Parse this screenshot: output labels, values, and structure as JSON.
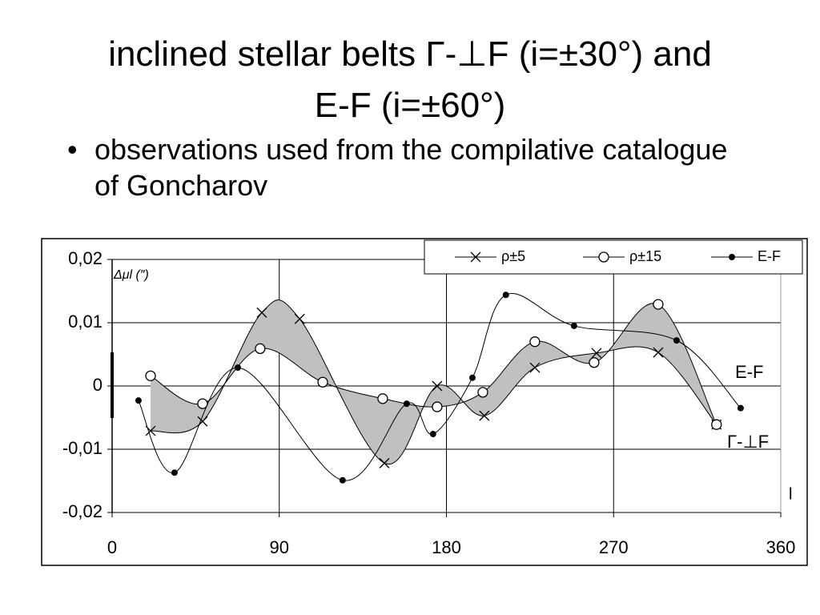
{
  "slide": {
    "title_lines": [
      "inclined stellar belts Γ-⊥F (i=±30°) and",
      "E-F (i=±60°)"
    ],
    "bullets": [
      "observations used from the compilative catalogue of Goncharov"
    ]
  },
  "chart_data": {
    "type": "line",
    "y_label": "Δμl (″)",
    "x_label": "l",
    "annotations": [
      "E-F",
      "Γ-⊥F"
    ],
    "xlim": [
      0,
      360
    ],
    "xticks": [
      0,
      90,
      180,
      270,
      360
    ],
    "ylim": [
      -0.02,
      0.02
    ],
    "yticks": [
      {
        "value": 0.02,
        "label": "0,02"
      },
      {
        "value": 0.01,
        "label": "0,01"
      },
      0,
      {
        "value": -0.01,
        "label": "-0,01"
      },
      {
        "value": -0.02,
        "label": "-0,02"
      }
    ],
    "grid": true,
    "legend": "top-right",
    "fill_between": [
      0,
      1
    ],
    "fill_color": "#c0c0c0",
    "series": [
      {
        "name": "ρ±5",
        "color": "#000000",
        "marker": "x",
        "x": [
          20.7,
          48.7,
          80.6,
          101,
          146.6,
          175,
          200.4,
          227.6,
          260.8,
          294,
          325.4
        ],
        "values": [
          -0.0071,
          -0.0056,
          0.0116,
          0.0106,
          -0.0122,
          0.0,
          -0.0047,
          0.0029,
          0.0052,
          0.0053,
          -0.0061
        ]
      },
      {
        "name": "ρ±15",
        "color": "#000000",
        "marker": "o",
        "x": [
          20.7,
          48.7,
          79.7,
          113.4,
          145.7,
          175,
          199.6,
          227.6,
          259.5,
          294,
          325.4
        ],
        "values": [
          0.0016,
          -0.0028,
          0.0059,
          0.0006,
          -0.002,
          -0.0033,
          -0.001,
          0.007,
          0.0037,
          0.0129,
          -0.0061
        ]
      },
      {
        "name": "E-F",
        "color": "#000000",
        "marker": "dot",
        "x": [
          14.2,
          33.6,
          67.7,
          124.1,
          158.6,
          172.8,
          194,
          212,
          248.7,
          303.9,
          338.4
        ],
        "values": [
          -0.0023,
          -0.0137,
          0.0029,
          -0.0149,
          -0.0028,
          -0.0076,
          0.0013,
          0.0144,
          0.0095,
          0.0072,
          -0.0035
        ]
      }
    ]
  }
}
